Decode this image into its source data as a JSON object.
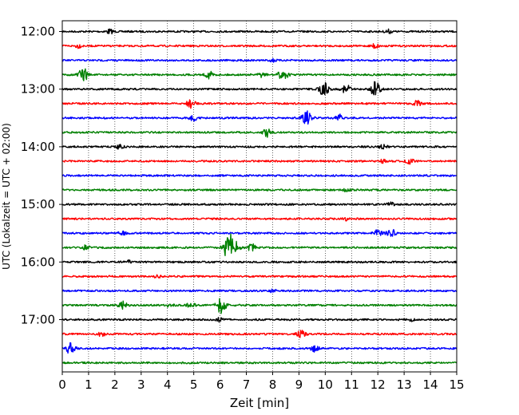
{
  "chart_data": {
    "type": "line",
    "title": "",
    "xlabel": "Zeit  [min]",
    "ylabel": "UTC (Lokalzeit = UTC + 02:00)",
    "xlim": [
      0,
      15
    ],
    "x_ticks": [
      0,
      1,
      2,
      3,
      4,
      5,
      6,
      7,
      8,
      9,
      10,
      11,
      12,
      13,
      14,
      15
    ],
    "y_tick_labels": [
      "12:00",
      "13:00",
      "14:00",
      "15:00",
      "16:00",
      "17:00"
    ],
    "row_interval_minutes": 15,
    "grid": "vertical dotted lines at each minute",
    "legend": "none",
    "trace_colors": [
      "#000000",
      "#ff0000",
      "#0000ff",
      "#008000"
    ],
    "rows": [
      {
        "start": "12:00",
        "color": "#000000",
        "events": [
          {
            "t": 1.8,
            "amp": 0.3
          },
          {
            "t": 12.4,
            "amp": 0.25
          }
        ]
      },
      {
        "start": "12:15",
        "color": "#ff0000",
        "events": [
          {
            "t": 0.6,
            "amp": 0.25
          },
          {
            "t": 11.9,
            "amp": 0.35
          }
        ]
      },
      {
        "start": "12:30",
        "color": "#0000ff",
        "events": [
          {
            "t": 8.0,
            "amp": 0.2
          }
        ]
      },
      {
        "start": "12:45",
        "color": "#008000",
        "events": [
          {
            "t": 0.8,
            "amp": 0.9
          },
          {
            "t": 5.6,
            "amp": 0.5
          },
          {
            "t": 7.6,
            "amp": 0.3
          },
          {
            "t": 8.4,
            "amp": 0.8
          }
        ]
      },
      {
        "start": "13:00",
        "color": "#000000",
        "events": [
          {
            "t": 9.95,
            "amp": 0.9
          },
          {
            "t": 10.8,
            "amp": 0.6
          },
          {
            "t": 11.9,
            "amp": 1.0
          }
        ]
      },
      {
        "start": "13:15",
        "color": "#ff0000",
        "events": [
          {
            "t": 4.9,
            "amp": 0.6
          },
          {
            "t": 13.5,
            "amp": 0.4
          }
        ]
      },
      {
        "start": "13:30",
        "color": "#0000ff",
        "events": [
          {
            "t": 5.0,
            "amp": 0.4
          },
          {
            "t": 9.3,
            "amp": 0.9
          },
          {
            "t": 10.5,
            "amp": 0.5
          }
        ]
      },
      {
        "start": "13:45",
        "color": "#008000",
        "events": [
          {
            "t": 7.8,
            "amp": 0.6
          }
        ]
      },
      {
        "start": "14:00",
        "color": "#000000",
        "events": [
          {
            "t": 2.2,
            "amp": 0.3
          },
          {
            "t": 12.2,
            "amp": 0.3
          }
        ]
      },
      {
        "start": "14:15",
        "color": "#ff0000",
        "events": [
          {
            "t": 13.2,
            "amp": 0.4
          },
          {
            "t": 12.2,
            "amp": 0.2
          }
        ]
      },
      {
        "start": "14:30",
        "color": "#0000ff",
        "events": []
      },
      {
        "start": "14:45",
        "color": "#008000",
        "events": [
          {
            "t": 10.8,
            "amp": 0.3
          }
        ]
      },
      {
        "start": "15:00",
        "color": "#000000",
        "events": [
          {
            "t": 12.5,
            "amp": 0.3
          }
        ]
      },
      {
        "start": "15:15",
        "color": "#ff0000",
        "events": [
          {
            "t": 10.8,
            "amp": 0.25
          }
        ]
      },
      {
        "start": "15:30",
        "color": "#0000ff",
        "events": [
          {
            "t": 2.3,
            "amp": 0.3
          },
          {
            "t": 12.0,
            "amp": 0.5
          },
          {
            "t": 12.5,
            "amp": 0.6
          }
        ]
      },
      {
        "start": "15:45",
        "color": "#008000",
        "events": [
          {
            "t": 0.9,
            "amp": 0.3
          },
          {
            "t": 6.3,
            "amp": 1.0
          },
          {
            "t": 6.45,
            "amp": 1.4
          },
          {
            "t": 7.2,
            "amp": 0.5
          }
        ]
      },
      {
        "start": "16:00",
        "color": "#000000",
        "events": [
          {
            "t": 2.5,
            "amp": 0.2
          }
        ]
      },
      {
        "start": "16:15",
        "color": "#ff0000",
        "events": [
          {
            "t": 3.6,
            "amp": 0.2
          }
        ]
      },
      {
        "start": "16:30",
        "color": "#0000ff",
        "events": [
          {
            "t": 8.0,
            "amp": 0.2
          }
        ]
      },
      {
        "start": "16:45",
        "color": "#008000",
        "events": [
          {
            "t": 2.3,
            "amp": 0.5
          },
          {
            "t": 4.1,
            "amp": 0.3
          },
          {
            "t": 4.9,
            "amp": 0.4
          },
          {
            "t": 6.0,
            "amp": 0.7
          },
          {
            "t": 6.1,
            "amp": 0.5
          }
        ]
      },
      {
        "start": "17:00",
        "color": "#000000",
        "events": [
          {
            "t": 6.0,
            "amp": 0.3
          },
          {
            "t": 13.3,
            "amp": 0.2
          }
        ]
      },
      {
        "start": "17:15",
        "color": "#ff0000",
        "events": [
          {
            "t": 1.5,
            "amp": 0.3
          },
          {
            "t": 9.1,
            "amp": 0.6
          }
        ]
      },
      {
        "start": "17:30",
        "color": "#0000ff",
        "events": [
          {
            "t": 0.3,
            "amp": 0.7
          },
          {
            "t": 9.6,
            "amp": 0.5
          }
        ]
      },
      {
        "start": "17:45",
        "color": "#008000",
        "events": []
      }
    ]
  }
}
